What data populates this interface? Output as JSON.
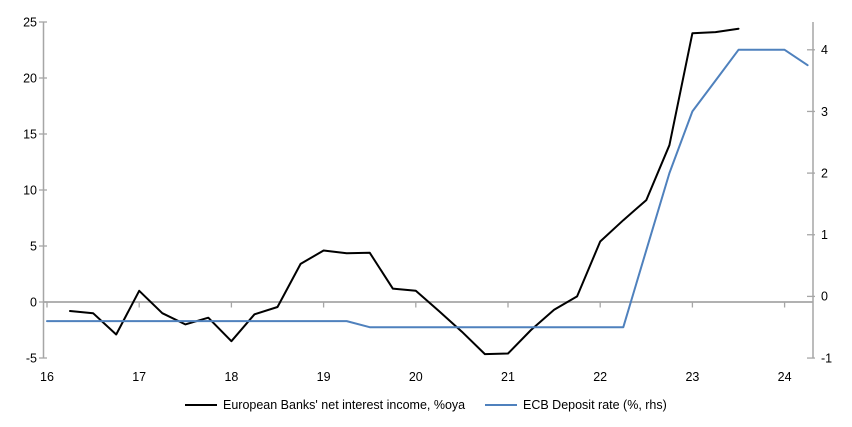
{
  "chart_data": {
    "type": "line",
    "title": "",
    "grid": false,
    "zero_line": true,
    "legend_position": "bottom",
    "x_axis": {
      "ticks": [
        16,
        17,
        18,
        19,
        20,
        21,
        22,
        23,
        24
      ],
      "range": [
        15.96,
        24.31
      ]
    },
    "left_axis": {
      "ticks": [
        -5,
        0,
        5,
        10,
        15,
        20,
        25
      ],
      "range": [
        -5,
        25
      ]
    },
    "right_axis": {
      "ticks": [
        -1,
        0,
        1,
        2,
        3,
        4
      ],
      "range": [
        -1,
        4.45
      ]
    },
    "series": [
      {
        "name": "European Banks' net interest income, %oya",
        "axis": "left",
        "color": "#000000",
        "x": [
          16.25,
          16.5,
          16.75,
          17.0,
          17.25,
          17.5,
          17.75,
          18.0,
          18.25,
          18.5,
          18.75,
          19.0,
          19.25,
          19.5,
          19.75,
          20.0,
          20.25,
          20.5,
          20.75,
          21.0,
          21.25,
          21.5,
          21.75,
          22.0,
          22.25,
          22.5,
          22.75,
          23.0,
          23.25,
          23.5
        ],
        "values": [
          -0.8,
          -1.0,
          -2.9,
          1.0,
          -1.0,
          -2.0,
          -1.4,
          -3.5,
          -1.1,
          -0.45,
          3.4,
          4.6,
          4.35,
          4.4,
          1.2,
          1.0,
          -0.8,
          -2.65,
          -4.65,
          -4.6,
          -2.5,
          -0.7,
          0.5,
          5.4,
          7.3,
          9.1,
          14.0,
          24.0,
          24.1,
          24.4
        ]
      },
      {
        "name": "ECB Deposit rate (%, rhs)",
        "axis": "right",
        "color": "#4f81bd",
        "x": [
          16.0,
          16.25,
          16.5,
          16.75,
          17.0,
          17.25,
          17.5,
          17.75,
          18.0,
          18.25,
          18.5,
          18.75,
          19.0,
          19.25,
          19.5,
          19.75,
          20.0,
          20.25,
          20.5,
          20.75,
          21.0,
          21.25,
          21.5,
          21.75,
          22.0,
          22.25,
          22.5,
          22.75,
          23.0,
          23.25,
          23.5,
          23.75,
          24.0,
          24.25
        ],
        "values": [
          -0.4,
          -0.4,
          -0.4,
          -0.4,
          -0.4,
          -0.4,
          -0.4,
          -0.4,
          -0.4,
          -0.4,
          -0.4,
          -0.4,
          -0.4,
          -0.4,
          -0.5,
          -0.5,
          -0.5,
          -0.5,
          -0.5,
          -0.5,
          -0.5,
          -0.5,
          -0.5,
          -0.5,
          -0.5,
          -0.5,
          0.75,
          2.0,
          3.0,
          3.5,
          4.0,
          4.0,
          4.0,
          3.75
        ]
      }
    ]
  },
  "colors": {
    "axis": "#a6a6a6",
    "text": "#000000",
    "background": "#ffffff",
    "series1": "#000000",
    "series2": "#4f81bd"
  }
}
